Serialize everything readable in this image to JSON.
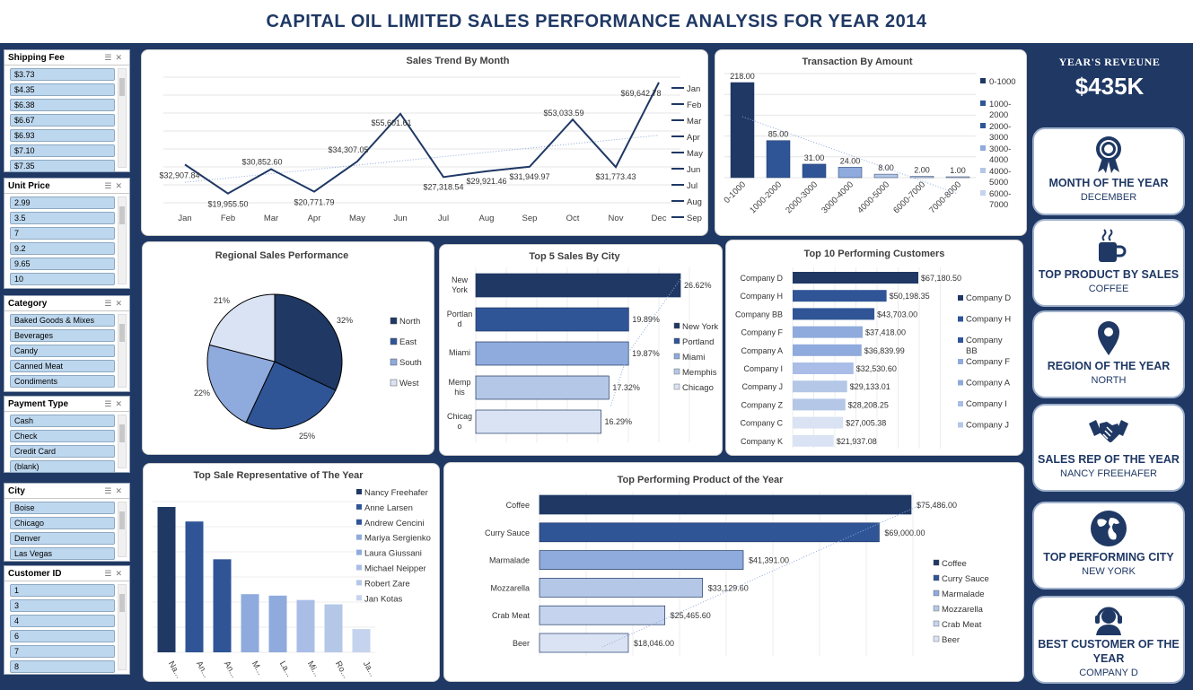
{
  "header": {
    "title": "CAPITAL OIL LIMITED SALES PERFORMANCE ANALYSIS FOR YEAR 2014"
  },
  "slicers": [
    {
      "title": "Shipping Fee",
      "items": [
        "$3.73",
        "$4.35",
        "$6.38",
        "$6.67",
        "$6.93",
        "$7.10",
        "$7.35"
      ]
    },
    {
      "title": "Unit Price",
      "items": [
        "2.99",
        "3.5",
        "7",
        "9.2",
        "9.65",
        "10"
      ]
    },
    {
      "title": "Category",
      "items": [
        "Baked Goods & Mixes",
        "Beverages",
        "Candy",
        "Canned Meat",
        "Condiments"
      ]
    },
    {
      "title": "Payment Type",
      "items": [
        "Cash",
        "Check",
        "Credit Card",
        "(blank)"
      ]
    },
    {
      "title": "City",
      "items": [
        "Boise",
        "Chicago",
        "Denver",
        "Las Vegas"
      ]
    },
    {
      "title": "Customer ID",
      "items": [
        "1",
        "3",
        "4",
        "6",
        "7",
        "8"
      ]
    }
  ],
  "kpi": {
    "revenue_title": "YEAR'S REVEUNE",
    "revenue_value": "$435K",
    "cards": [
      {
        "title": "MONTH OF THE YEAR",
        "value": "DECEMBER",
        "icon": "award-ribbon-icon"
      },
      {
        "title": "TOP PRODUCT BY SALES",
        "value": "COFFEE",
        "icon": "coffee-mug-icon"
      },
      {
        "title": "REGION OF THE YEAR",
        "value": "NORTH",
        "icon": "map-pin-icon"
      },
      {
        "title": "SALES REP OF THE YEAR",
        "value": "NANCY FREEHAFER",
        "icon": "handshake-icon"
      },
      {
        "title": "TOP PERFORMING CITY",
        "value": "NEW YORK",
        "icon": "globe-icon"
      },
      {
        "title": "BEST CUSTOMER OF THE YEAR",
        "value": "COMPANY D",
        "icon": "customer-service-icon"
      }
    ]
  },
  "chart_data": [
    {
      "id": "trend",
      "type": "line",
      "title": "Sales Trend By Month",
      "categories": [
        "Jan",
        "Feb",
        "Mar",
        "Apr",
        "May",
        "Jun",
        "Jul",
        "Aug",
        "Sep",
        "Oct",
        "Nov",
        "Dec"
      ],
      "values": [
        32907.84,
        19955.5,
        30852.6,
        20771.79,
        34307.05,
        55601.61,
        27318.54,
        29921.46,
        31949.97,
        53033.59,
        31773.43,
        69642.78
      ],
      "labels": [
        "$32,907.84",
        "$19,955.50",
        "$30,852.60",
        "$20,771.79",
        "$34,307.05",
        "$55,601.61",
        "$27,318.54",
        "$29,921.46",
        "$31,949.97",
        "$53,033.59",
        "$31,773.43",
        "$69,642.78"
      ],
      "legend": [
        "Jan",
        "Feb",
        "Mar",
        "Apr",
        "May",
        "Jun",
        "Jul",
        "Aug",
        "Sep"
      ],
      "trendline": true
    },
    {
      "id": "amount",
      "type": "bar",
      "title": "Transaction By Amount",
      "categories": [
        "0-1000",
        "1000-2000",
        "2000-3000",
        "3000-4000",
        "4000-5000",
        "6000-7000",
        "7000-8000"
      ],
      "values": [
        218,
        85,
        31,
        24,
        8,
        2,
        1
      ],
      "labels": [
        "218.00",
        "85.00",
        "31.00",
        "24.00",
        "8.00",
        "2.00",
        "1.00"
      ],
      "legend": [
        [
          "0-1000"
        ],
        [
          "1000-",
          "2000"
        ],
        [
          "2000-",
          "3000"
        ],
        [
          "3000-",
          "4000"
        ],
        [
          "4000-",
          "5000"
        ],
        [
          "6000-",
          "7000"
        ]
      ],
      "trendline": true
    },
    {
      "id": "region",
      "type": "pie",
      "title": "Regional Sales Performance",
      "categories": [
        "North",
        "East",
        "South",
        "West"
      ],
      "values": [
        32,
        25,
        22,
        21
      ],
      "labels": [
        "32%",
        "25%",
        "22%",
        "21%"
      ]
    },
    {
      "id": "city",
      "type": "bar",
      "title": "Top 5 Sales By City",
      "categories": [
        [
          "New",
          "York"
        ],
        [
          "Portlan",
          "d"
        ],
        [
          "Miami"
        ],
        [
          "Memp",
          "his"
        ],
        [
          "Chicag",
          "o"
        ]
      ],
      "legend": [
        "New York",
        "Portland",
        "Miami",
        "Memphis",
        "Chicago"
      ],
      "values": [
        26.62,
        19.89,
        19.87,
        17.32,
        16.29
      ],
      "labels": [
        "26.62%",
        "19.89%",
        "19.87%",
        "17.32%",
        "16.29%"
      ]
    },
    {
      "id": "customers",
      "type": "bar",
      "title": "Top 10 Performing Customers",
      "categories": [
        "Company D",
        "Company H",
        "Company BB",
        "Company F",
        "Company A",
        "Company I",
        "Company J",
        "Company Z",
        "Company C",
        "Company K"
      ],
      "values": [
        67180.5,
        50198.35,
        43703.0,
        37418.0,
        36839.99,
        32530.6,
        29133.01,
        28208.25,
        27005.38,
        21937.08
      ],
      "labels": [
        "$67,180.50",
        "$50,198.35",
        "$43,703.00",
        "$37,418.00",
        "$36,839.99",
        "$32,530.60",
        "$29,133.01",
        "$28,208.25",
        "$27,005.38",
        "$21,937.08"
      ],
      "legend": [
        [
          "Company D"
        ],
        [
          "Company H"
        ],
        [
          "Company",
          "BB"
        ],
        [
          "Company F"
        ],
        [
          "Company A"
        ],
        [
          "Company I"
        ],
        [
          "Company J"
        ]
      ]
    },
    {
      "id": "reps",
      "type": "bar",
      "title": "Top Sale Representative of The Year",
      "categories": [
        "Na...",
        "An...",
        "An...",
        "M...",
        "La...",
        "Mi...",
        "Ro...",
        "Ja..."
      ],
      "legend": [
        "Nancy Freehafer",
        "Anne Larsen",
        "Andrew Cencini",
        "Mariya Sergienko",
        "Laura Giussani",
        "Michael Neipper",
        "Robert Zare",
        "Jan Kotas"
      ],
      "values": [
        100,
        90,
        64,
        40,
        39,
        36,
        33,
        16
      ]
    },
    {
      "id": "products",
      "type": "bar",
      "title": "Top Performing Product of the Year",
      "categories": [
        "Coffee",
        "Curry Sauce",
        "Marmalade",
        "Mozzarella",
        "Crab Meat",
        "Beer"
      ],
      "values": [
        75486,
        69000,
        41391,
        33129.6,
        25465.6,
        18046
      ],
      "labels": [
        "$75,486.00",
        "$69,000.00",
        "$41,391.00",
        "$33,129.60",
        "$25,465.60",
        "$18,046.00"
      ],
      "trendline": true
    }
  ],
  "colors": [
    "#1f3864",
    "#2f5597",
    "#3a60a8",
    "#8faadc",
    "#a9bde6",
    "#b4c7e7",
    "#c5d3ee",
    "#dae3f3"
  ]
}
